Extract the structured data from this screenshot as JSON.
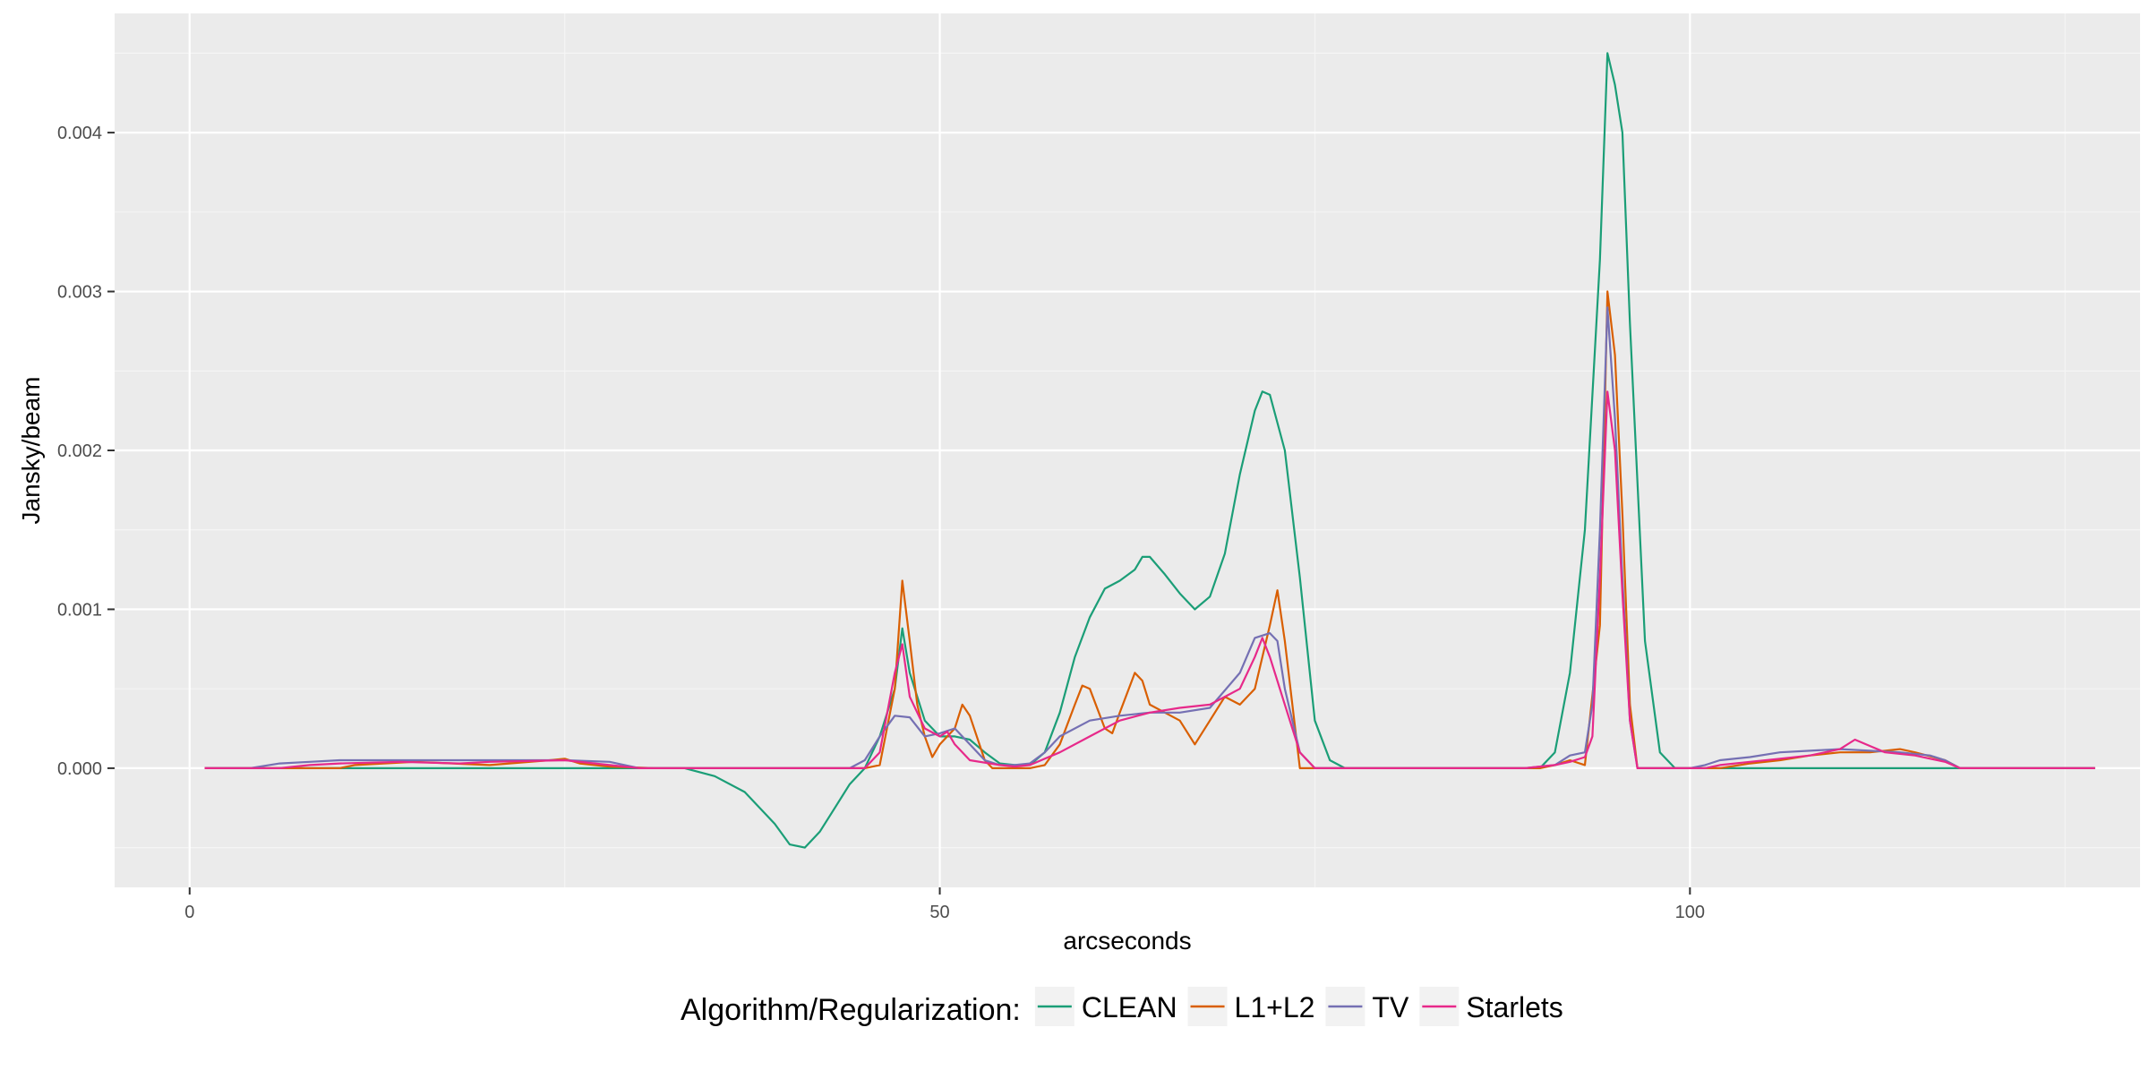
{
  "chart_data": {
    "type": "line",
    "title": "",
    "xlabel": "arcseconds",
    "ylabel": "Jansky/beam",
    "xlim": [
      -5,
      130
    ],
    "ylim": [
      -0.00075,
      0.00475
    ],
    "x_ticks": [
      0,
      50,
      100
    ],
    "x_tick_labels": [
      "0",
      "50",
      "100"
    ],
    "y_ticks": [
      0.0,
      0.001,
      0.002,
      0.003,
      0.004
    ],
    "y_tick_labels": [
      "0.000",
      "0.001",
      "0.002",
      "0.003",
      "0.004"
    ],
    "grid": true,
    "legend": {
      "title": "Algorithm/Regularization:",
      "position": "bottom",
      "entries": [
        "CLEAN",
        "L1+L2",
        "TV",
        "Starlets"
      ]
    },
    "series": [
      {
        "name": "CLEAN",
        "color": "#1b9e77",
        "points": [
          [
            1,
            0
          ],
          [
            33,
            0
          ],
          [
            35,
            -5e-05
          ],
          [
            37,
            -0.00015
          ],
          [
            39,
            -0.00035
          ],
          [
            40,
            -0.00048
          ],
          [
            41,
            -0.0005
          ],
          [
            42,
            -0.0004
          ],
          [
            43,
            -0.00025
          ],
          [
            44,
            -0.0001
          ],
          [
            45,
            0
          ],
          [
            46,
            0.0002
          ],
          [
            47,
            0.0005
          ],
          [
            47.5,
            0.00088
          ],
          [
            48,
            0.0006
          ],
          [
            49,
            0.0003
          ],
          [
            50,
            0.0002
          ],
          [
            51,
            0.0002
          ],
          [
            52,
            0.00018
          ],
          [
            53,
            0.0001
          ],
          [
            54,
            3e-05
          ],
          [
            55,
            2e-05
          ],
          [
            56,
            2e-05
          ],
          [
            57,
            0.0001
          ],
          [
            58,
            0.00035
          ],
          [
            59,
            0.0007
          ],
          [
            60,
            0.00095
          ],
          [
            61,
            0.00113
          ],
          [
            62,
            0.00118
          ],
          [
            63,
            0.00125
          ],
          [
            63.5,
            0.00133
          ],
          [
            64,
            0.00133
          ],
          [
            65,
            0.00122
          ],
          [
            66,
            0.0011
          ],
          [
            67,
            0.001
          ],
          [
            68,
            0.00108
          ],
          [
            69,
            0.00135
          ],
          [
            70,
            0.00185
          ],
          [
            71,
            0.00225
          ],
          [
            71.5,
            0.00237
          ],
          [
            72,
            0.00235
          ],
          [
            73,
            0.002
          ],
          [
            74,
            0.0012
          ],
          [
            75,
            0.0003
          ],
          [
            76,
            5e-05
          ],
          [
            77,
            0
          ],
          [
            90,
            0
          ],
          [
            91,
            0.0001
          ],
          [
            92,
            0.0006
          ],
          [
            93,
            0.0015
          ],
          [
            94,
            0.0032
          ],
          [
            94.5,
            0.0045
          ],
          [
            95,
            0.0043
          ],
          [
            95.5,
            0.004
          ],
          [
            96,
            0.0028
          ],
          [
            97,
            0.0008
          ],
          [
            98,
            0.0001
          ],
          [
            99,
            0
          ],
          [
            122,
            0
          ],
          [
            127,
            0
          ]
        ]
      },
      {
        "name": "L1+L2",
        "color": "#d95f02",
        "points": [
          [
            1,
            0
          ],
          [
            10,
            0
          ],
          [
            11,
            2e-05
          ],
          [
            15,
            4e-05
          ],
          [
            20,
            2e-05
          ],
          [
            24,
            5e-05
          ],
          [
            25,
            6e-05
          ],
          [
            26,
            3e-05
          ],
          [
            28,
            1e-05
          ],
          [
            31,
            0
          ],
          [
            45,
            0
          ],
          [
            46,
            2e-05
          ],
          [
            47,
            0.0005
          ],
          [
            47.5,
            0.00118
          ],
          [
            48,
            0.0008
          ],
          [
            48.5,
            0.0004
          ],
          [
            49,
            0.0002
          ],
          [
            49.5,
            7e-05
          ],
          [
            50,
            0.00015
          ],
          [
            51,
            0.00025
          ],
          [
            51.5,
            0.0004
          ],
          [
            52,
            0.00033
          ],
          [
            53,
            5e-05
          ],
          [
            53.5,
            0
          ],
          [
            56,
            0
          ],
          [
            57,
            2e-05
          ],
          [
            58,
            0.00015
          ],
          [
            59,
            0.0004
          ],
          [
            59.5,
            0.00052
          ],
          [
            60,
            0.0005
          ],
          [
            61,
            0.00025
          ],
          [
            61.5,
            0.00022
          ],
          [
            62,
            0.00035
          ],
          [
            63,
            0.0006
          ],
          [
            63.5,
            0.00055
          ],
          [
            64,
            0.0004
          ],
          [
            65,
            0.00035
          ],
          [
            66,
            0.0003
          ],
          [
            67,
            0.00015
          ],
          [
            68,
            0.0003
          ],
          [
            69,
            0.00045
          ],
          [
            70,
            0.0004
          ],
          [
            71,
            0.0005
          ],
          [
            72,
            0.0009
          ],
          [
            72.5,
            0.00112
          ],
          [
            73,
            0.0008
          ],
          [
            73.5,
            0.0004
          ],
          [
            74,
            0
          ],
          [
            90,
            0
          ],
          [
            91,
            2e-05
          ],
          [
            92,
            5e-05
          ],
          [
            93,
            2e-05
          ],
          [
            94,
            0.0009
          ],
          [
            94.5,
            0.003
          ],
          [
            95,
            0.0026
          ],
          [
            95.5,
            0.0016
          ],
          [
            96,
            0.0004
          ],
          [
            96.5,
            0
          ],
          [
            102,
            0
          ],
          [
            104,
            3e-05
          ],
          [
            106,
            5e-05
          ],
          [
            108,
            8e-05
          ],
          [
            110,
            0.0001
          ],
          [
            112,
            0.0001
          ],
          [
            114,
            0.00012
          ],
          [
            115,
            0.0001
          ],
          [
            117,
            5e-05
          ],
          [
            118,
            0
          ],
          [
            127,
            0
          ]
        ]
      },
      {
        "name": "TV",
        "color": "#7570b3",
        "points": [
          [
            1,
            0
          ],
          [
            4,
            0
          ],
          [
            6,
            3e-05
          ],
          [
            8,
            4e-05
          ],
          [
            10,
            5e-05
          ],
          [
            15,
            5e-05
          ],
          [
            20,
            5e-05
          ],
          [
            25,
            5e-05
          ],
          [
            28,
            4e-05
          ],
          [
            29,
            2e-05
          ],
          [
            30,
            0
          ],
          [
            44,
            0
          ],
          [
            45,
            5e-05
          ],
          [
            46,
            0.0002
          ],
          [
            47,
            0.00033
          ],
          [
            48,
            0.00032
          ],
          [
            49,
            0.0002
          ],
          [
            50,
            0.00022
          ],
          [
            51,
            0.00025
          ],
          [
            52,
            0.00015
          ],
          [
            53,
            5e-05
          ],
          [
            54,
            2e-05
          ],
          [
            55,
            2e-05
          ],
          [
            56,
            3e-05
          ],
          [
            57,
            0.0001
          ],
          [
            58,
            0.0002
          ],
          [
            60,
            0.0003
          ],
          [
            62,
            0.00033
          ],
          [
            64,
            0.00035
          ],
          [
            66,
            0.00035
          ],
          [
            68,
            0.00038
          ],
          [
            70,
            0.0006
          ],
          [
            71,
            0.00082
          ],
          [
            72,
            0.00085
          ],
          [
            72.5,
            0.0008
          ],
          [
            73,
            0.0005
          ],
          [
            74,
            0.0001
          ],
          [
            75,
            0
          ],
          [
            89,
            0
          ],
          [
            91,
            2e-05
          ],
          [
            92,
            8e-05
          ],
          [
            93,
            0.0001
          ],
          [
            93.5,
            0.0004
          ],
          [
            94,
            0.0015
          ],
          [
            94.5,
            0.0029
          ],
          [
            95,
            0.0022
          ],
          [
            95.5,
            0.0012
          ],
          [
            96,
            0.0003
          ],
          [
            96.5,
            0
          ],
          [
            100,
            0
          ],
          [
            101,
            2e-05
          ],
          [
            102,
            5e-05
          ],
          [
            104,
            7e-05
          ],
          [
            106,
            0.0001
          ],
          [
            108,
            0.00011
          ],
          [
            110,
            0.00012
          ],
          [
            112,
            0.00011
          ],
          [
            114,
            0.0001
          ],
          [
            116,
            8e-05
          ],
          [
            117,
            5e-05
          ],
          [
            118,
            0
          ],
          [
            127,
            0
          ]
        ]
      },
      {
        "name": "Starlets",
        "color": "#e7298a",
        "points": [
          [
            1,
            0
          ],
          [
            6,
            0
          ],
          [
            8,
            2e-05
          ],
          [
            10,
            3e-05
          ],
          [
            14,
            4e-05
          ],
          [
            18,
            3e-05
          ],
          [
            20,
            4e-05
          ],
          [
            25,
            5e-05
          ],
          [
            28,
            2e-05
          ],
          [
            30,
            0
          ],
          [
            45,
            0
          ],
          [
            46,
            0.0001
          ],
          [
            47,
            0.0006
          ],
          [
            47.5,
            0.00078
          ],
          [
            48,
            0.00045
          ],
          [
            49,
            0.00025
          ],
          [
            50,
            0.0002
          ],
          [
            50.5,
            0.00023
          ],
          [
            51,
            0.00015
          ],
          [
            52,
            5e-05
          ],
          [
            54,
            2e-05
          ],
          [
            55,
            1e-05
          ],
          [
            56,
            2e-05
          ],
          [
            58,
            0.0001
          ],
          [
            60,
            0.0002
          ],
          [
            62,
            0.0003
          ],
          [
            64,
            0.00035
          ],
          [
            66,
            0.00038
          ],
          [
            68,
            0.0004
          ],
          [
            69,
            0.00045
          ],
          [
            70,
            0.0005
          ],
          [
            71,
            0.0007
          ],
          [
            71.5,
            0.00082
          ],
          [
            72,
            0.0007
          ],
          [
            73,
            0.0004
          ],
          [
            74,
            0.0001
          ],
          [
            75,
            0
          ],
          [
            89,
            0
          ],
          [
            91,
            2e-05
          ],
          [
            92,
            4e-05
          ],
          [
            93,
            7e-05
          ],
          [
            93.5,
            0.0002
          ],
          [
            94,
            0.0012
          ],
          [
            94.5,
            0.00237
          ],
          [
            95,
            0.002
          ],
          [
            95.5,
            0.0011
          ],
          [
            96,
            0.0003
          ],
          [
            96.5,
            0
          ],
          [
            101,
            0
          ],
          [
            102,
            2e-05
          ],
          [
            104,
            4e-05
          ],
          [
            106,
            6e-05
          ],
          [
            108,
            8e-05
          ],
          [
            109,
            0.0001
          ],
          [
            110,
            0.00012
          ],
          [
            111,
            0.00018
          ],
          [
            112,
            0.00014
          ],
          [
            113,
            0.0001
          ],
          [
            115,
            8e-05
          ],
          [
            117,
            4e-05
          ],
          [
            118,
            0
          ],
          [
            127,
            0
          ]
        ]
      }
    ]
  }
}
